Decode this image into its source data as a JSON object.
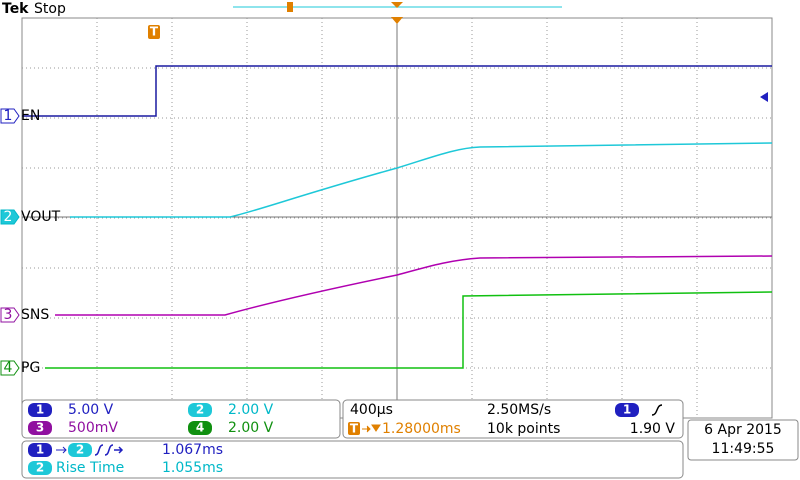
{
  "header": {
    "brand": "Tek",
    "status": "Stop",
    "trigger_marker": "T"
  },
  "channels": [
    {
      "number": "1",
      "label": "EN"
    },
    {
      "number": "2",
      "label": "VOUT"
    },
    {
      "number": "3",
      "label": "SNS"
    },
    {
      "number": "4",
      "label": "PG"
    }
  ],
  "settings": {
    "channels": [
      {
        "number": "1",
        "scale": "5.00 V"
      },
      {
        "number": "2",
        "scale": "2.00 V"
      },
      {
        "number": "3",
        "scale": "500mV"
      },
      {
        "number": "4",
        "scale": "2.00 V"
      }
    ],
    "timebase": "400µs",
    "sample_rate": "2.50MS/s",
    "trigger_delay": "1.28000ms",
    "record_length": "10k points",
    "trigger_channel": "1",
    "trigger_level": "1.90 V"
  },
  "timestamp": {
    "date": "6 Apr 2015",
    "time": "11:49:55"
  },
  "measurements": [
    {
      "source": "1",
      "target": "2",
      "value": "1.067ms"
    },
    {
      "source": "2",
      "name": "Rise Time",
      "value": "1.055ms"
    }
  ]
}
